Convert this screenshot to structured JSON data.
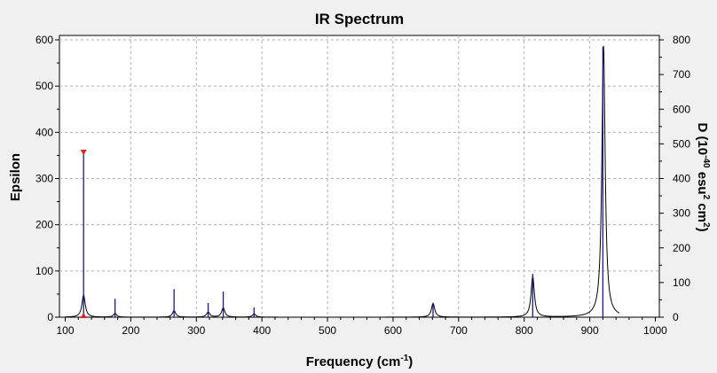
{
  "chart_data": {
    "type": "line",
    "title": "IR Spectrum",
    "xlabel": "Frequency (cm",
    "xlabel_sup": "-1",
    "xlabel_end": ")",
    "ylabel_left": "Epsilon",
    "ylabel_right": "D (10",
    "ylabel_right_sup1": "-40",
    "ylabel_right_mid": " esu",
    "ylabel_right_sup2": "2",
    "ylabel_right_mid2": " cm",
    "ylabel_right_sup3": "2",
    "ylabel_right_end": ")",
    "xlim": [
      100,
      1000
    ],
    "ylim_left": [
      0,
      600
    ],
    "ylim_right": [
      0,
      800
    ],
    "x_ticks": [
      100,
      200,
      300,
      400,
      500,
      600,
      700,
      800,
      900,
      1000
    ],
    "y_left_ticks": [
      0,
      100,
      200,
      300,
      400,
      500,
      600
    ],
    "y_right_ticks": [
      0,
      100,
      200,
      300,
      400,
      500,
      600,
      700,
      800
    ],
    "grid": true,
    "x_range_curve": [
      100,
      945
    ],
    "series": [
      {
        "kind": "spectrum_epsilon",
        "color": "#000000",
        "peaks": [
          {
            "freq": 128,
            "epsilon": 48,
            "width": 3
          },
          {
            "freq": 176,
            "epsilon": 8,
            "width": 3
          },
          {
            "freq": 266,
            "epsilon": 14,
            "width": 3
          },
          {
            "freq": 318,
            "epsilon": 11,
            "width": 3
          },
          {
            "freq": 341,
            "epsilon": 20,
            "width": 3
          },
          {
            "freq": 388,
            "epsilon": 7,
            "width": 3
          },
          {
            "freq": 661,
            "epsilon": 30,
            "width": 3
          },
          {
            "freq": 813,
            "epsilon": 88,
            "width": 3
          },
          {
            "freq": 921,
            "epsilon": 587,
            "width": 3
          }
        ]
      },
      {
        "kind": "stick_D",
        "color": "#1a1a8c",
        "sticks": [
          {
            "freq": 128,
            "D": 473
          },
          {
            "freq": 176,
            "D": 53
          },
          {
            "freq": 266,
            "D": 81
          },
          {
            "freq": 318,
            "D": 41
          },
          {
            "freq": 341,
            "D": 74
          },
          {
            "freq": 388,
            "D": 28
          },
          {
            "freq": 661,
            "D": 40
          },
          {
            "freq": 813,
            "D": 125
          },
          {
            "freq": 920,
            "D": 780
          }
        ]
      }
    ],
    "marker": {
      "freq": 128,
      "D": 473,
      "color": "#e02020"
    }
  }
}
